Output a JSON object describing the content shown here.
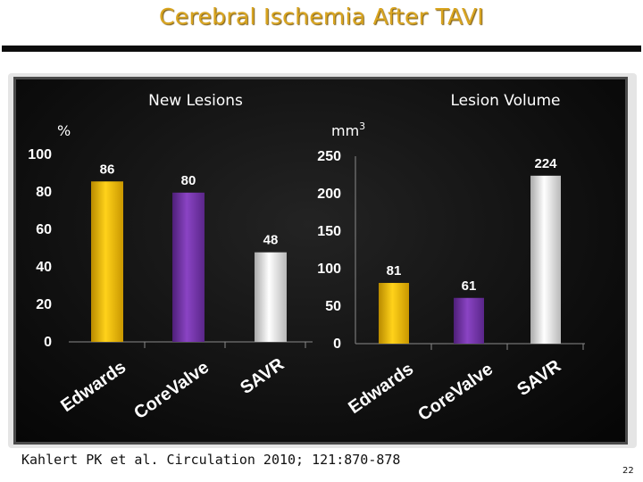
{
  "slide": {
    "title": "Cerebral Ischemia After TAVI",
    "citation": "Kahlert PK et al. Circulation 2010; 121:870-878",
    "page_number": "22"
  },
  "colors": {
    "edwards": "#f7c100",
    "corevalve": "#7a35b2",
    "savr": "#e6e6e6",
    "panel": "#111111",
    "title": "#d9a520"
  },
  "chart_data": [
    {
      "type": "bar",
      "title": "New Lesions",
      "unit": "%",
      "categories": [
        "Edwards",
        "CoreValve",
        "SAVR"
      ],
      "values": [
        86,
        80,
        48
      ],
      "value_labels": [
        "86",
        "80",
        "48"
      ],
      "ylim": [
        0,
        100
      ],
      "yticks": [
        0,
        20,
        40,
        60,
        80,
        100
      ],
      "ytick_labels": [
        "0",
        "20",
        "40",
        "60",
        "80",
        "100"
      ],
      "grid": false,
      "legend": "none"
    },
    {
      "type": "bar",
      "title": "Lesion Volume",
      "unit": "mm",
      "unit_superscript": "3",
      "categories": [
        "Edwards",
        "CoreValve",
        "SAVR"
      ],
      "values": [
        81,
        61,
        224
      ],
      "value_labels": [
        "81",
        "61",
        "224"
      ],
      "ylim": [
        0,
        250
      ],
      "yticks": [
        0,
        50,
        100,
        150,
        200,
        250
      ],
      "ytick_labels": [
        "0",
        "50",
        "100",
        "150",
        "200",
        "250"
      ],
      "grid": false,
      "legend": "none"
    }
  ]
}
